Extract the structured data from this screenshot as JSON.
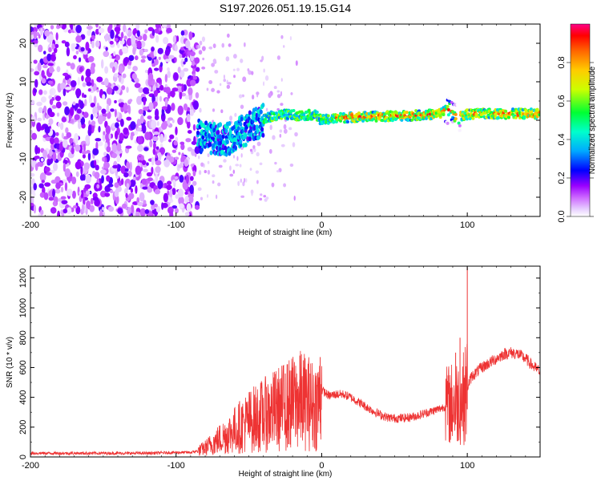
{
  "title": "S197.2026.051.19.15.G14",
  "chart_data": [
    {
      "type": "heatmap",
      "name": "spectrogram",
      "xlabel": "Height of straight line (km)",
      "ylabel": "Frequency (Hz)",
      "xlim": [
        -200,
        150
      ],
      "ylim": [
        -25,
        25
      ],
      "xticks": [
        -200,
        -100,
        0,
        100
      ],
      "xtick_labels": [
        "-200",
        "-100",
        "0",
        "100"
      ],
      "yticks": [
        20,
        10,
        0,
        -10,
        -20
      ],
      "ytick_labels": [
        "20",
        "10",
        "0",
        "-10",
        "-20"
      ],
      "colorbar": {
        "label": "Normalized spectral amplitude",
        "range": [
          0,
          1
        ],
        "ticks": [
          0.0,
          0.2,
          0.4,
          0.6,
          0.8
        ],
        "tick_labels": [
          "0.0",
          "0.2",
          "0.4",
          "0.6",
          "0.8"
        ],
        "colors": [
          "#ffffff",
          "#cc99ff",
          "#9900ff",
          "#0000ff",
          "#00ccff",
          "#00ff66",
          "#ffff00",
          "#ff8800",
          "#ff0000",
          "#ff0099"
        ]
      },
      "signal_track": {
        "x": [
          -85,
          -75,
          -65,
          -55,
          -45,
          -35,
          -25,
          -15,
          -5,
          0,
          10,
          20,
          40,
          60,
          80,
          88,
          92,
          100,
          110,
          130,
          150
        ],
        "freq": [
          -4,
          -5,
          -5,
          -3,
          -1,
          1,
          1.5,
          1.2,
          1.5,
          0,
          0.5,
          0.8,
          1,
          1.2,
          1.6,
          3,
          1,
          1.5,
          1.7,
          1.7,
          1.7
        ]
      }
    },
    {
      "type": "line",
      "name": "snr",
      "xlabel": "Height of straight line (km)",
      "ylabel": "SNR (10 * v/v)",
      "xlim": [
        -200,
        150
      ],
      "ylim": [
        0,
        1280
      ],
      "xticks": [
        -200,
        -100,
        0,
        100
      ],
      "xtick_labels": [
        "-200",
        "-100",
        "0",
        "100"
      ],
      "yticks": [
        0,
        200,
        400,
        600,
        800,
        1000,
        1200
      ],
      "ytick_labels": [
        "0",
        "200",
        "400",
        "600",
        "800",
        "1000",
        "1200"
      ],
      "series": [
        {
          "name": "SNR",
          "color": "#ee3333",
          "x": [
            -200,
            -180,
            -160,
            -140,
            -120,
            -100,
            -90,
            -85,
            -80,
            -75,
            -70,
            -65,
            -60,
            -55,
            -50,
            -45,
            -40,
            -35,
            -30,
            -25,
            -20,
            -15,
            -10,
            -5,
            -1,
            0,
            5,
            10,
            15,
            20,
            25,
            30,
            35,
            40,
            45,
            50,
            55,
            60,
            65,
            70,
            75,
            80,
            85,
            90,
            95,
            98,
            100,
            103,
            110,
            115,
            120,
            125,
            130,
            135,
            140,
            145,
            150
          ],
          "y": [
            25,
            25,
            25,
            25,
            25,
            30,
            30,
            40,
            60,
            90,
            120,
            150,
            180,
            210,
            240,
            260,
            280,
            300,
            320,
            340,
            360,
            380,
            370,
            340,
            380,
            450,
            410,
            420,
            420,
            400,
            370,
            340,
            310,
            285,
            265,
            260,
            260,
            265,
            275,
            290,
            305,
            320,
            340,
            360,
            380,
            400,
            470,
            540,
            600,
            630,
            660,
            690,
            700,
            690,
            660,
            610,
            570
          ]
        }
      ],
      "spikes": [
        {
          "x": -55,
          "y": 320
        },
        {
          "x": -45,
          "y": 400
        },
        {
          "x": -38,
          "y": 470
        },
        {
          "x": -30,
          "y": 500
        },
        {
          "x": -25,
          "y": 560
        },
        {
          "x": -20,
          "y": 600
        },
        {
          "x": -15,
          "y": 680
        },
        {
          "x": -8,
          "y": 560
        },
        {
          "x": -1,
          "y": 670
        },
        {
          "x": 92,
          "y": 700
        },
        {
          "x": 95,
          "y": 800
        },
        {
          "x": 100,
          "y": 1270
        }
      ]
    }
  ]
}
